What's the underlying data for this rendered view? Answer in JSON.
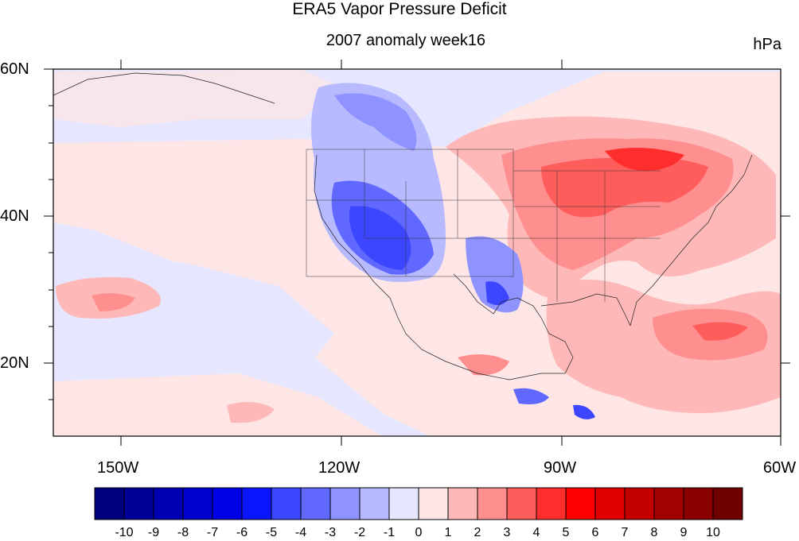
{
  "title": "ERA5 Vapor Pressure Deficit",
  "subtitle": "2007 anomaly week16",
  "units": "hPa",
  "lat_labels": [
    "60N",
    "40N",
    "20N"
  ],
  "lon_labels": [
    "150W",
    "120W",
    "90W",
    "60W"
  ],
  "colorbar": {
    "labels": [
      "-10",
      "-9",
      "-8",
      "-7",
      "-6",
      "-5",
      "-4",
      "-3",
      "-2",
      "-1",
      "0",
      "1",
      "2",
      "3",
      "4",
      "5",
      "6",
      "7",
      "8",
      "9",
      "10"
    ],
    "colors": [
      "#00007d",
      "#000098",
      "#0000b3",
      "#0000ce",
      "#0000e6",
      "#0a16ff",
      "#3c46ff",
      "#6068ff",
      "#8e93ff",
      "#b8baff",
      "#e6e7ff",
      "#ffe6e6",
      "#ffb8b8",
      "#ff8e8e",
      "#ff5c5c",
      "#ff2e2e",
      "#ff0000",
      "#e00000",
      "#c20000",
      "#a30000",
      "#8a0000",
      "#700000"
    ]
  },
  "map_region": {
    "lon_range": [
      -160,
      -60
    ],
    "lat_range": [
      10,
      60
    ]
  }
}
